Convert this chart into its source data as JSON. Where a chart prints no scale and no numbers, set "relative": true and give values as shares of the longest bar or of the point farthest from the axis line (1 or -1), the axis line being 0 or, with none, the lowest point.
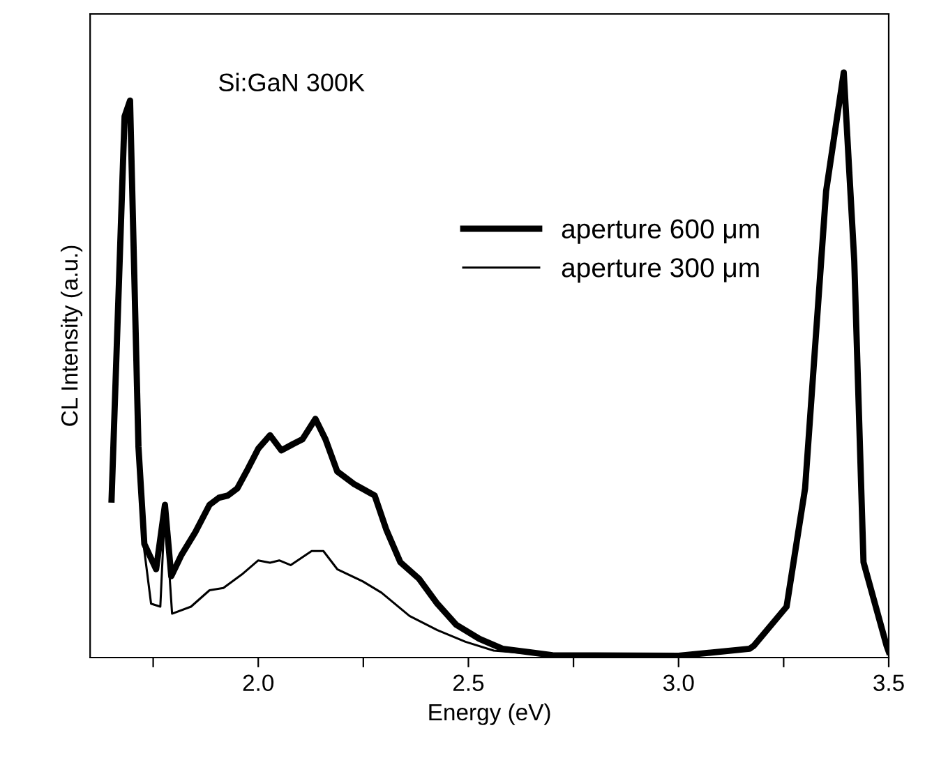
{
  "chart_data": {
    "type": "line",
    "relative": true,
    "xlabel": "Energy (eV)",
    "ylabel": "CL Intensity (a.u.)",
    "annotations": [
      "Si:GaN 300K"
    ],
    "xlim": [
      1.6,
      3.5
    ],
    "xticks": [
      {
        "value": 1.75,
        "label": null
      },
      {
        "value": 2.0,
        "label": "2.0"
      },
      {
        "value": 2.25,
        "label": null
      },
      2.5,
      {
        "value": 2.75,
        "label": null
      },
      {
        "value": 3.0,
        "label": "3.0"
      },
      {
        "value": 3.25,
        "label": null
      },
      3.5
    ],
    "legend": "top right",
    "grid": false,
    "marker": "none",
    "line_style": "solid",
    "series": [
      {
        "name": "aperture 600 μm",
        "color": "#000000",
        "x": [
          1.651,
          1.682,
          1.695,
          1.715,
          1.729,
          1.757,
          1.778,
          1.793,
          1.817,
          1.85,
          1.884,
          1.906,
          1.928,
          1.95,
          1.972,
          2.0,
          2.028,
          2.055,
          2.083,
          2.105,
          2.136,
          2.16,
          2.188,
          2.227,
          2.277,
          2.305,
          2.338,
          2.382,
          2.426,
          2.471,
          2.526,
          2.581,
          2.7,
          3.0,
          3.169,
          3.179,
          3.257,
          3.301,
          3.351,
          3.393,
          3.418,
          3.44,
          3.495,
          3.5
        ],
        "values": [
          0.27,
          0.925,
          0.952,
          0.36,
          0.194,
          0.151,
          0.261,
          0.139,
          0.175,
          0.214,
          0.261,
          0.273,
          0.277,
          0.289,
          0.318,
          0.357,
          0.38,
          0.354,
          0.365,
          0.373,
          0.408,
          0.373,
          0.318,
          0.297,
          0.277,
          0.218,
          0.163,
          0.135,
          0.092,
          0.056,
          0.032,
          0.015,
          0.004,
          0.003,
          0.015,
          0.02,
          0.087,
          0.289,
          0.797,
          1.0,
          0.678,
          0.163,
          0.02,
          0.01
        ]
      },
      {
        "name": "aperture 300 μm",
        "color": "#000000",
        "x": [
          1.727,
          1.745,
          1.767,
          1.778,
          1.795,
          1.84,
          1.884,
          1.917,
          1.961,
          2.0,
          2.028,
          2.05,
          2.077,
          2.127,
          2.155,
          2.188,
          2.249,
          2.293,
          2.36,
          2.426,
          2.493,
          2.56,
          2.7
        ],
        "values": [
          0.194,
          0.092,
          0.087,
          0.258,
          0.075,
          0.087,
          0.115,
          0.119,
          0.142,
          0.166,
          0.162,
          0.166,
          0.158,
          0.182,
          0.182,
          0.151,
          0.13,
          0.111,
          0.071,
          0.047,
          0.027,
          0.012,
          0.004
        ]
      }
    ]
  }
}
